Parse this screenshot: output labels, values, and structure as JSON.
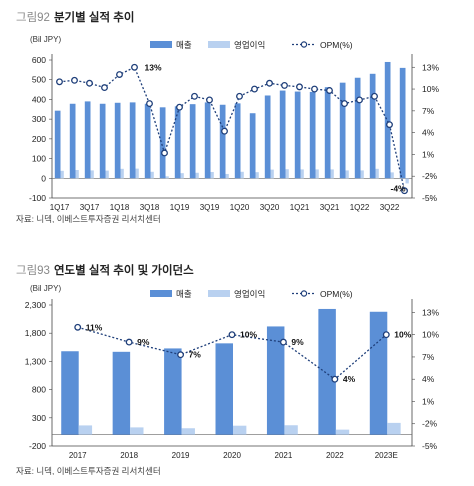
{
  "figures": [
    {
      "fig_num": "그림92",
      "title": "분기별 실적 추이",
      "source": "자료: 니덱, 이베스트투자증권 리서치센터"
    },
    {
      "fig_num": "그림93",
      "title": "연도별 실적 추이 및 가이던스",
      "source": "자료: 니덱, 이베스트투자증권 리서치센터"
    }
  ],
  "chart_data": [
    {
      "type": "bar",
      "unit_label": "(Bil JPY)",
      "categories": [
        "1Q17",
        "2Q17",
        "3Q17",
        "4Q17",
        "1Q18",
        "2Q18",
        "3Q18",
        "4Q18",
        "1Q19",
        "2Q19",
        "3Q19",
        "4Q19",
        "1Q20",
        "2Q20",
        "3Q20",
        "4Q20",
        "1Q21",
        "2Q21",
        "3Q21",
        "4Q21",
        "1Q22",
        "2Q22",
        "3Q22",
        "4Q22"
      ],
      "tick_labels": [
        "1Q17",
        "3Q17",
        "1Q18",
        "3Q18",
        "1Q19",
        "3Q19",
        "1Q20",
        "3Q20",
        "1Q21",
        "3Q21",
        "1Q22",
        "3Q22"
      ],
      "series": [
        {
          "name": "매출",
          "axis": "left",
          "color": "#5b8fd6",
          "values": [
            343,
            378,
            390,
            378,
            383,
            385,
            378,
            360,
            365,
            376,
            385,
            373,
            380,
            330,
            420,
            445,
            440,
            438,
            462,
            485,
            510,
            530,
            590,
            560
          ]
        },
        {
          "name": "영업이익",
          "axis": "left",
          "color": "#b9d1f0",
          "values": [
            38,
            42,
            40,
            39,
            48,
            49,
            33,
            10,
            26,
            28,
            32,
            22,
            33,
            31,
            44,
            46,
            45,
            45,
            45,
            40,
            40,
            48,
            30,
            -26
          ]
        },
        {
          "name": "OPM(%)",
          "axis": "right",
          "type": "line",
          "color": "#1f3f7a",
          "values": [
            11.0,
            11.2,
            10.8,
            10.2,
            12.0,
            13.0,
            8.0,
            1.2,
            7.5,
            9.0,
            8.5,
            4.2,
            9.0,
            10.0,
            10.8,
            10.5,
            10.3,
            10.0,
            9.8,
            8.0,
            8.5,
            9.0,
            5.1,
            -4.0
          ]
        }
      ],
      "y_left": {
        "min": -100,
        "max": 600,
        "ticks": [
          -100,
          0,
          100,
          200,
          300,
          400,
          500,
          600
        ]
      },
      "y_right": {
        "min": -5,
        "max": 14,
        "ticks": [
          "13%",
          "10%",
          "7%",
          "4%",
          "1%",
          "-2%",
          "-5%"
        ],
        "tick_values": [
          13,
          10,
          7,
          4,
          1,
          -2,
          -5
        ]
      },
      "annotations": [
        {
          "label": "13%",
          "category": "2Q18",
          "value": 13.0
        },
        {
          "label": "-4%",
          "category": "4Q22",
          "value": -4.0
        }
      ],
      "grid": false,
      "legend": "top"
    },
    {
      "type": "bar",
      "unit_label": "(Bil JPY)",
      "categories": [
        "2017",
        "2018",
        "2019",
        "2020",
        "2021",
        "2022",
        "2023E"
      ],
      "series": [
        {
          "name": "매출",
          "axis": "left",
          "color": "#5b8fd6",
          "values": [
            1480,
            1470,
            1530,
            1620,
            1920,
            2230,
            2180
          ]
        },
        {
          "name": "영업이익",
          "axis": "left",
          "color": "#b9d1f0",
          "values": [
            165,
            130,
            115,
            160,
            168,
            90,
            210
          ]
        },
        {
          "name": "OPM(%)",
          "axis": "right",
          "type": "line",
          "color": "#1f3f7a",
          "values": [
            11.0,
            9.0,
            7.3,
            10.0,
            9.0,
            4.0,
            10.0
          ]
        }
      ],
      "y_left": {
        "min": -200,
        "max": 2300,
        "ticks": [
          -200,
          300,
          800,
          1300,
          1800,
          2300
        ]
      },
      "y_right": {
        "min": -5,
        "max": 14,
        "ticks": [
          "13%",
          "10%",
          "7%",
          "4%",
          "1%",
          "-2%",
          "-5%"
        ],
        "tick_values": [
          13,
          10,
          7,
          4,
          1,
          -2,
          -5
        ]
      },
      "annotations": [
        {
          "label": "11%",
          "category": "2017",
          "value": 11.0
        },
        {
          "label": "9%",
          "category": "2018",
          "value": 9.0
        },
        {
          "label": "7%",
          "category": "2019",
          "value": 7.3
        },
        {
          "label": "10%",
          "category": "2020",
          "value": 10.0
        },
        {
          "label": "9%",
          "category": "2021",
          "value": 9.0
        },
        {
          "label": "4%",
          "category": "2022",
          "value": 4.0
        },
        {
          "label": "10%",
          "category": "2023E",
          "value": 10.0
        }
      ],
      "grid": false,
      "legend": "top"
    }
  ]
}
